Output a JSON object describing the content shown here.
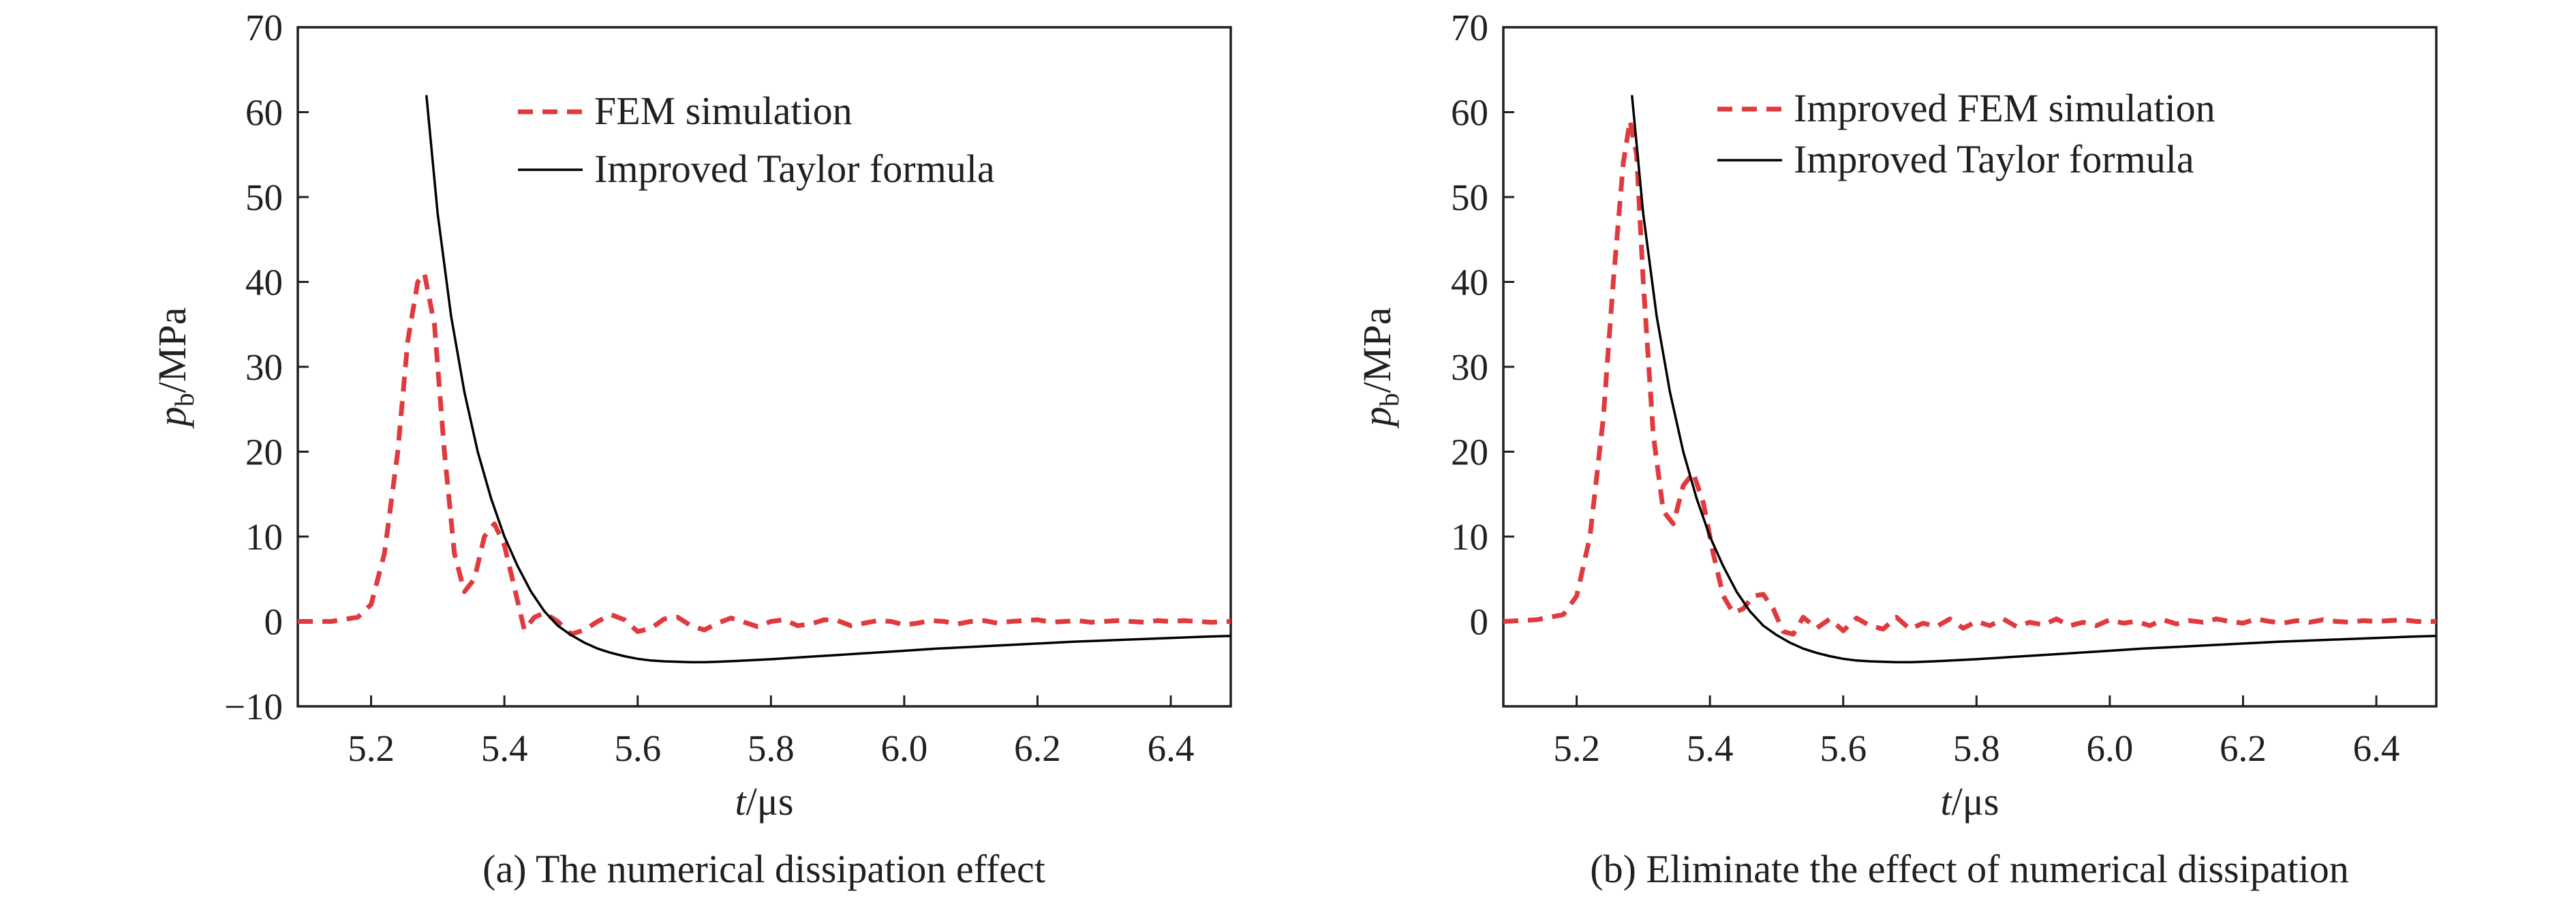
{
  "chart_data": [
    {
      "type": "line",
      "caption": "(a) The numerical dissipation effect",
      "xlabel": {
        "italic": "t",
        "unit": "/μs"
      },
      "ylabel": {
        "italic": "p",
        "sub": "b",
        "unit": "/MPa"
      },
      "xlim": [
        5.09,
        6.49
      ],
      "ylim": [
        -10,
        70
      ],
      "xticks": [
        5.2,
        5.4,
        5.6,
        5.8,
        6.0,
        6.2,
        6.4
      ],
      "xtick_labels": [
        "5.2",
        "5.4",
        "5.6",
        "5.8",
        "6.0",
        "6.2",
        "6.4"
      ],
      "yticks": [
        -10,
        0,
        10,
        20,
        30,
        40,
        50,
        60,
        70
      ],
      "ytick_labels": [
        "−10",
        "0",
        "10",
        "20",
        "30",
        "40",
        "50",
        "60",
        "70"
      ],
      "legend_position": "top-right",
      "grid": false,
      "series": [
        {
          "name": "FEM simulation",
          "style": "dashed",
          "color": "#e03a3e",
          "x": [
            5.09,
            5.14,
            5.18,
            5.2,
            5.22,
            5.24,
            5.255,
            5.27,
            5.28,
            5.295,
            5.31,
            5.325,
            5.34,
            5.355,
            5.37,
            5.385,
            5.4,
            5.415,
            5.43,
            5.445,
            5.46,
            5.48,
            5.5,
            5.52,
            5.54,
            5.56,
            5.58,
            5.6,
            5.62,
            5.64,
            5.66,
            5.68,
            5.7,
            5.72,
            5.74,
            5.76,
            5.78,
            5.8,
            5.82,
            5.84,
            5.86,
            5.88,
            5.9,
            5.92,
            5.94,
            5.96,
            5.98,
            6.0,
            6.02,
            6.04,
            6.06,
            6.08,
            6.1,
            6.12,
            6.14,
            6.16,
            6.18,
            6.2,
            6.22,
            6.24,
            6.26,
            6.28,
            6.3,
            6.32,
            6.34,
            6.36,
            6.38,
            6.4,
            6.42,
            6.44,
            6.46,
            6.49
          ],
          "y": [
            0,
            0,
            0.5,
            2,
            8,
            20,
            33,
            40,
            41,
            35,
            20,
            8,
            3.5,
            5,
            10,
            11.5,
            9,
            4,
            -1,
            0.5,
            1,
            0,
            -1.5,
            -1,
            0,
            0.8,
            0.2,
            -1.2,
            -0.8,
            0.3,
            0.5,
            -0.5,
            -1,
            -0.2,
            0.4,
            -0.1,
            -0.6,
            0,
            0.2,
            -0.5,
            -0.3,
            0.2,
            0.1,
            -0.5,
            -0.2,
            0.1,
            0,
            -0.4,
            -0.2,
            0.1,
            0,
            -0.3,
            0,
            0.1,
            -0.2,
            0,
            0.1,
            0.2,
            -0.1,
            0,
            0.1,
            -0.1,
            0,
            0.1,
            0,
            -0.1,
            0.1,
            0,
            0.1,
            0,
            -0.1,
            0
          ]
        },
        {
          "name": "Improved Taylor formula",
          "style": "solid",
          "color": "#000000",
          "x": [
            5.283,
            5.3,
            5.32,
            5.34,
            5.36,
            5.38,
            5.4,
            5.42,
            5.44,
            5.46,
            5.48,
            5.5,
            5.52,
            5.54,
            5.56,
            5.58,
            5.6,
            5.62,
            5.64,
            5.66,
            5.68,
            5.7,
            5.72,
            5.75,
            5.8,
            5.85,
            5.9,
            5.95,
            6.0,
            6.05,
            6.1,
            6.15,
            6.2,
            6.25,
            6.3,
            6.35,
            6.4,
            6.45,
            6.49
          ],
          "y": [
            62,
            48,
            36,
            27,
            20,
            14.5,
            10,
            6.5,
            3.5,
            1.2,
            -0.5,
            -1.6,
            -2.5,
            -3.2,
            -3.7,
            -4.1,
            -4.4,
            -4.6,
            -4.7,
            -4.75,
            -4.8,
            -4.8,
            -4.75,
            -4.65,
            -4.45,
            -4.2,
            -3.95,
            -3.7,
            -3.45,
            -3.2,
            -3.0,
            -2.8,
            -2.6,
            -2.4,
            -2.25,
            -2.1,
            -1.95,
            -1.8,
            -1.7
          ]
        }
      ]
    },
    {
      "type": "line",
      "caption": "(b) Eliminate the effect of numerical dissipation",
      "xlabel": {
        "italic": "t",
        "unit": "/μs"
      },
      "ylabel": {
        "italic": "p",
        "sub": "b",
        "unit": "/MPa"
      },
      "xlim": [
        5.09,
        6.49
      ],
      "ylim": [
        -10,
        70
      ],
      "xticks": [
        5.2,
        5.4,
        5.6,
        5.8,
        6.0,
        6.2,
        6.4
      ],
      "xtick_labels": [
        "5.2",
        "5.4",
        "5.6",
        "5.8",
        "6.0",
        "6.2",
        "6.4"
      ],
      "yticks": [
        0,
        10,
        20,
        30,
        40,
        50,
        60,
        70
      ],
      "ytick_labels": [
        "0",
        "10",
        "20",
        "30",
        "40",
        "50",
        "60",
        "70"
      ],
      "legend_position": "top-right",
      "grid": false,
      "series": [
        {
          "name": "Improved FEM simulation",
          "style": "dashed",
          "color": "#e03a3e",
          "x": [
            5.09,
            5.14,
            5.18,
            5.2,
            5.22,
            5.24,
            5.255,
            5.27,
            5.28,
            5.29,
            5.3,
            5.315,
            5.33,
            5.345,
            5.36,
            5.375,
            5.39,
            5.405,
            5.42,
            5.435,
            5.45,
            5.465,
            5.48,
            5.495,
            5.51,
            5.525,
            5.54,
            5.56,
            5.58,
            5.6,
            5.62,
            5.64,
            5.66,
            5.68,
            5.7,
            5.72,
            5.74,
            5.76,
            5.78,
            5.8,
            5.82,
            5.84,
            5.86,
            5.88,
            5.9,
            5.92,
            5.94,
            5.96,
            5.98,
            6.0,
            6.02,
            6.04,
            6.06,
            6.08,
            6.1,
            6.12,
            6.14,
            6.16,
            6.18,
            6.2,
            6.22,
            6.24,
            6.26,
            6.28,
            6.3,
            6.32,
            6.34,
            6.36,
            6.38,
            6.4,
            6.42,
            6.44,
            6.46,
            6.49
          ],
          "y": [
            0,
            0.2,
            0.8,
            3,
            10,
            24,
            40,
            54,
            59,
            55,
            40,
            22,
            13,
            11.5,
            16,
            17.5,
            14,
            8,
            3,
            1,
            1.5,
            3,
            3.2,
            1.5,
            -1.2,
            -1.5,
            0.5,
            -0.8,
            0.3,
            -1.1,
            0.4,
            -0.5,
            -0.9,
            0.5,
            -0.9,
            -0.2,
            -0.6,
            0.3,
            -0.8,
            0,
            -0.5,
            0.3,
            -0.6,
            -0.1,
            -0.4,
            0.3,
            -0.5,
            -0.1,
            -0.5,
            0.2,
            -0.2,
            0,
            -0.5,
            0.2,
            -0.3,
            0.1,
            -0.1,
            0.3,
            0,
            -0.2,
            0.3,
            0,
            -0.2,
            0.1,
            -0.1,
            0.2,
            0,
            -0.1,
            0.1,
            0,
            0.1,
            0.2,
            0,
            0
          ]
        },
        {
          "name": "Improved Taylor formula",
          "style": "solid",
          "color": "#000000",
          "x": [
            5.283,
            5.3,
            5.32,
            5.34,
            5.36,
            5.38,
            5.4,
            5.42,
            5.44,
            5.46,
            5.48,
            5.5,
            5.52,
            5.54,
            5.56,
            5.58,
            5.6,
            5.62,
            5.64,
            5.66,
            5.68,
            5.7,
            5.72,
            5.75,
            5.8,
            5.85,
            5.9,
            5.95,
            6.0,
            6.05,
            6.1,
            6.15,
            6.2,
            6.25,
            6.3,
            6.35,
            6.4,
            6.45,
            6.49
          ],
          "y": [
            62,
            48,
            36,
            27,
            20,
            14.5,
            10,
            6.5,
            3.5,
            1.2,
            -0.5,
            -1.6,
            -2.5,
            -3.2,
            -3.7,
            -4.1,
            -4.4,
            -4.6,
            -4.7,
            -4.75,
            -4.8,
            -4.8,
            -4.75,
            -4.65,
            -4.45,
            -4.2,
            -3.95,
            -3.7,
            -3.45,
            -3.2,
            -3.0,
            -2.8,
            -2.6,
            -2.4,
            -2.25,
            -2.1,
            -1.95,
            -1.8,
            -1.7
          ]
        }
      ]
    }
  ]
}
